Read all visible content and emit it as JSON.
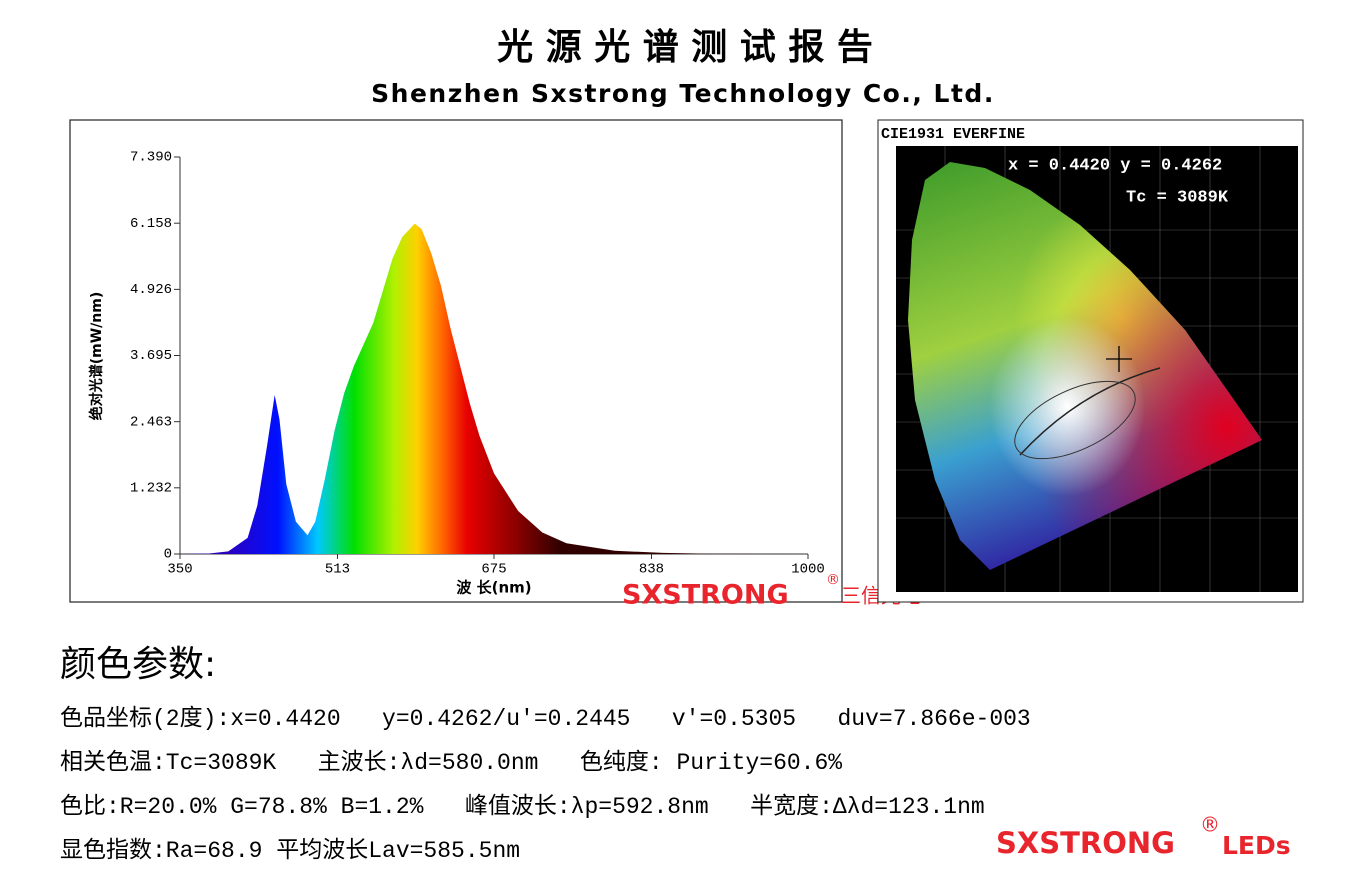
{
  "header": {
    "title": "光 源 光 谱 测 试 报 告",
    "subtitle": "Shenzhen Sxstrong Technology Co., Ltd."
  },
  "chart_data": {
    "type": "area",
    "x_label": "波 长(nm)",
    "y_label": "绝对光谱(mW/nm)",
    "x": [
      350,
      380,
      400,
      420,
      430,
      440,
      448,
      453,
      460,
      470,
      482,
      490,
      500,
      510,
      520,
      530,
      540,
      550,
      560,
      570,
      580,
      593,
      600,
      610,
      620,
      630,
      640,
      650,
      660,
      675,
      700,
      725,
      750,
      800,
      850,
      900,
      1000
    ],
    "values": [
      0,
      0.01,
      0.05,
      0.3,
      0.9,
      2.0,
      2.96,
      2.5,
      1.3,
      0.6,
      0.35,
      0.6,
      1.4,
      2.3,
      3.0,
      3.5,
      3.9,
      4.3,
      4.9,
      5.5,
      5.9,
      6.15,
      6.05,
      5.6,
      5.0,
      4.2,
      3.5,
      2.8,
      2.2,
      1.5,
      0.8,
      0.4,
      0.2,
      0.06,
      0.02,
      0.005,
      0
    ],
    "xlim": [
      350,
      1000
    ],
    "xticks": [
      350,
      513,
      675,
      838,
      1000
    ],
    "ylim": [
      0,
      7.39
    ],
    "yticks": [
      0,
      1.232,
      2.463,
      3.695,
      4.926,
      6.158,
      {
        "value": 7.39,
        "label": "7.390"
      }
    ]
  },
  "cie": {
    "title": "CIE1931 EVERFINE",
    "coords": "x = 0.4420 y = 0.4262",
    "tc": "Tc = 3089K"
  },
  "watermarks": {
    "chart": "SXSTRONG",
    "chart_reg": "®",
    "chart_cn": "三信光电",
    "footer": "SXSTRONG",
    "footer_reg": "®",
    "footer_leds": "LEDs"
  },
  "parameters": {
    "heading": "颜色参数:",
    "lines": [
      "色品坐标(2度):x=0.4420   y=0.4262/u'=0.2445   v'=0.5305   duv=7.866e-003",
      "相关色温:Tc=3089K   主波长:λd=580.0nm   色纯度: Purity=60.6%",
      "色比:R=20.0% G=78.8% B=1.2%   峰值波长:λp=592.8nm   半宽度:Δλd=123.1nm",
      "显色指数:Ra=68.9 平均波长Lav=585.5nm"
    ]
  }
}
